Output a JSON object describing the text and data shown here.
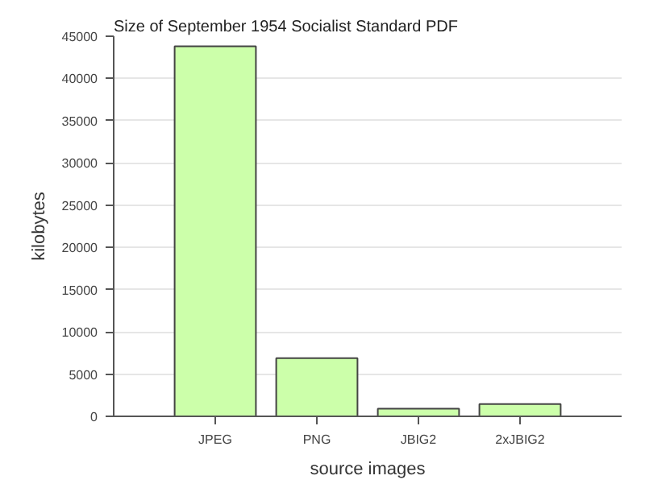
{
  "chart_data": {
    "type": "bar",
    "title": "Size of September 1954 Socialist Standard PDF",
    "xlabel": "source images",
    "ylabel": "kilobytes",
    "categories": [
      "JPEG",
      "PNG",
      "JBIG2",
      "2xJBIG2"
    ],
    "values": [
      43800,
      6900,
      900,
      1450
    ],
    "color": "#ccffaa",
    "ylim": [
      0,
      45000
    ],
    "yticks": [
      0,
      5000,
      10000,
      15000,
      20000,
      25000,
      30000,
      35000,
      40000,
      45000
    ],
    "grid": "y"
  }
}
